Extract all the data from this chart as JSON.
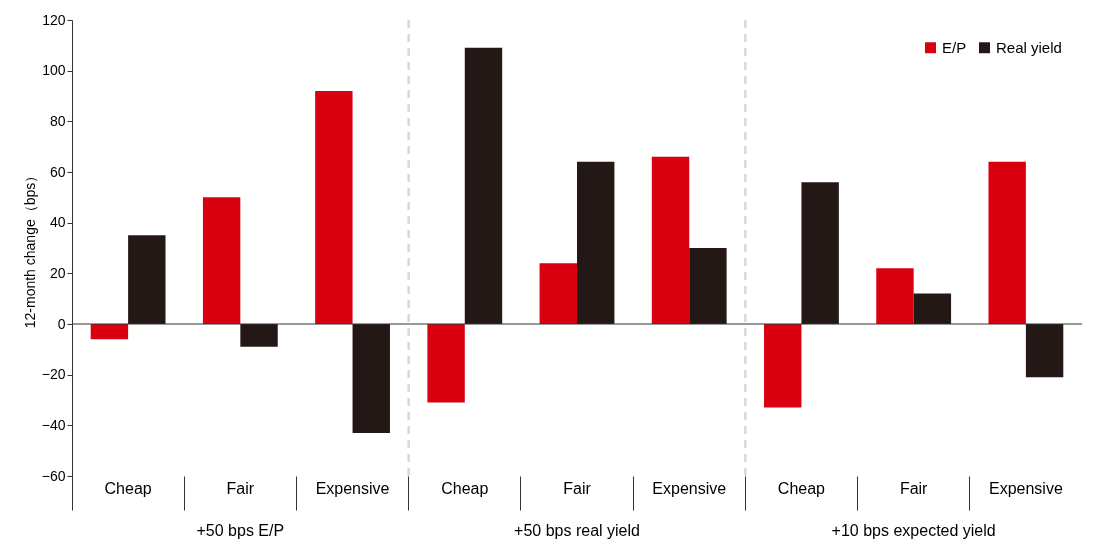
{
  "chart_data": {
    "type": "bar",
    "ylabel": "12-month change（bps）",
    "categories": [
      "Cheap",
      "Fair",
      "Expensive",
      "Cheap",
      "Fair",
      "Expensive",
      "Cheap",
      "Fair",
      "Expensive"
    ],
    "series": [
      {
        "name": "E/P",
        "color": "#d9000f",
        "values": [
          -6,
          50,
          92,
          -31,
          24,
          66,
          -33,
          22,
          64
        ]
      },
      {
        "name": "Real yield",
        "color": "#231815",
        "values": [
          35,
          -9,
          -43,
          109,
          64,
          30,
          56,
          12,
          -21
        ]
      }
    ],
    "ylim": [
      -60,
      120
    ],
    "yticks": [
      -60,
      -40,
      -20,
      0,
      20,
      40,
      60,
      80,
      100,
      120
    ],
    "grid": false,
    "legend": "top right",
    "annotations": [
      "+50 bps E/P",
      "+50 bps real yield",
      "+10 bps expected yield"
    ]
  }
}
